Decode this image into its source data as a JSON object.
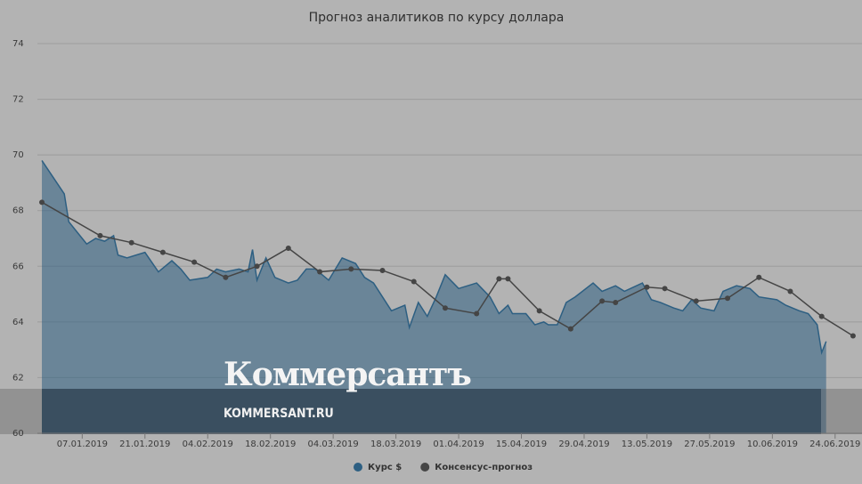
{
  "chart_data": {
    "type": "area-line",
    "title": "Прогноз аналитиков по курсу доллара",
    "xlim": [
      "28.12.2018",
      "30.06.2019"
    ],
    "xticks": [
      "07.01.2019",
      "21.01.2019",
      "04.02.2019",
      "18.02.2019",
      "04.03.2019",
      "18.03.2019",
      "01.04.2019",
      "15.04.2019",
      "29.04.2019",
      "13.05.2019",
      "27.05.2019",
      "10.06.2019",
      "24.06.2019"
    ],
    "ylim": [
      60,
      74
    ],
    "yticks": [
      60,
      62,
      64,
      66,
      68,
      70,
      72,
      74
    ],
    "grid": true,
    "legend": "bottom",
    "series": [
      {
        "name": "Курс $",
        "kind": "area",
        "color": "#2d5f82",
        "x": [
          "29.12.2018",
          "03.01.2019",
          "04.01.2019",
          "06.01.2019",
          "08.01.2019",
          "10.01.2019",
          "12.01.2019",
          "14.01.2019",
          "15.01.2019",
          "17.01.2019",
          "21.01.2019",
          "24.01.2019",
          "27.01.2019",
          "29.01.2019",
          "31.01.2019",
          "04.02.2019",
          "06.02.2019",
          "08.02.2019",
          "11.02.2019",
          "13.02.2019",
          "14.02.2019",
          "15.02.2019",
          "17.02.2019",
          "19.02.2019",
          "22.02.2019",
          "24.02.2019",
          "26.02.2019",
          "28.02.2019",
          "03.03.2019",
          "06.03.2019",
          "09.03.2019",
          "11.03.2019",
          "13.03.2019",
          "15.03.2019",
          "17.03.2019",
          "20.03.2019",
          "21.03.2019",
          "23.03.2019",
          "25.03.2019",
          "27.03.2019",
          "29.03.2019",
          "01.04.2019",
          "03.04.2019",
          "05.04.2019",
          "08.04.2019",
          "10.04.2019",
          "12.04.2019",
          "13.04.2019",
          "16.04.2019",
          "18.04.2019",
          "20.04.2019",
          "21.04.2019",
          "23.04.2019",
          "25.04.2019",
          "27.04.2019",
          "01.05.2019",
          "03.05.2019",
          "06.05.2019",
          "08.05.2019",
          "12.05.2019",
          "14.05.2019",
          "16.05.2019",
          "19.05.2019",
          "21.05.2019",
          "23.05.2019",
          "25.05.2019",
          "28.05.2019",
          "30.05.2019",
          "02.06.2019",
          "05.06.2019",
          "07.06.2019",
          "11.06.2019",
          "13.06.2019",
          "16.06.2019",
          "18.06.2019",
          "20.06.2019",
          "21.06.2019",
          "22.06.2019"
        ],
        "values": [
          69.8,
          68.6,
          67.6,
          67.2,
          66.8,
          67.0,
          66.9,
          67.1,
          66.4,
          66.3,
          66.5,
          65.8,
          66.2,
          65.9,
          65.5,
          65.6,
          65.9,
          65.8,
          65.9,
          65.8,
          66.6,
          65.5,
          66.3,
          65.6,
          65.4,
          65.5,
          65.9,
          65.9,
          65.5,
          66.3,
          66.1,
          65.6,
          65.4,
          64.9,
          64.4,
          64.6,
          63.8,
          64.7,
          64.2,
          64.9,
          65.7,
          65.2,
          65.3,
          65.4,
          64.9,
          64.3,
          64.6,
          64.3,
          64.3,
          63.9,
          64.0,
          63.9,
          63.9,
          64.7,
          64.9,
          65.4,
          65.1,
          65.3,
          65.1,
          65.4,
          64.8,
          64.7,
          64.5,
          64.4,
          64.8,
          64.5,
          64.4,
          65.1,
          65.3,
          65.2,
          64.9,
          64.8,
          64.6,
          64.4,
          64.3,
          63.9,
          62.9,
          63.3
        ]
      },
      {
        "name": "Консенсус-прогноз",
        "kind": "line",
        "color": "#454545",
        "x": [
          "29.12.2018",
          "11.01.2019",
          "18.01.2019",
          "25.01.2019",
          "01.02.2019",
          "08.02.2019",
          "15.02.2019",
          "22.02.2019",
          "01.03.2019",
          "08.03.2019",
          "15.03.2019",
          "22.03.2019",
          "29.03.2019",
          "05.04.2019",
          "10.04.2019",
          "12.04.2019",
          "19.04.2019",
          "26.04.2019",
          "03.05.2019",
          "06.05.2019",
          "13.05.2019",
          "17.05.2019",
          "24.05.2019",
          "31.05.2019",
          "07.06.2019",
          "14.06.2019",
          "21.06.2019",
          "28.06.2019"
        ],
        "values": [
          68.3,
          67.1,
          66.85,
          66.5,
          66.15,
          65.6,
          66.0,
          66.65,
          65.8,
          65.9,
          65.85,
          65.45,
          64.5,
          64.3,
          65.55,
          65.55,
          64.4,
          63.75,
          64.75,
          64.7,
          65.25,
          65.2,
          64.75,
          64.85,
          65.6,
          65.1,
          64.2,
          63.5
        ]
      }
    ]
  },
  "watermark": {
    "logo": "Коммерсантъ",
    "site": "KOMMERSANT.RU"
  }
}
